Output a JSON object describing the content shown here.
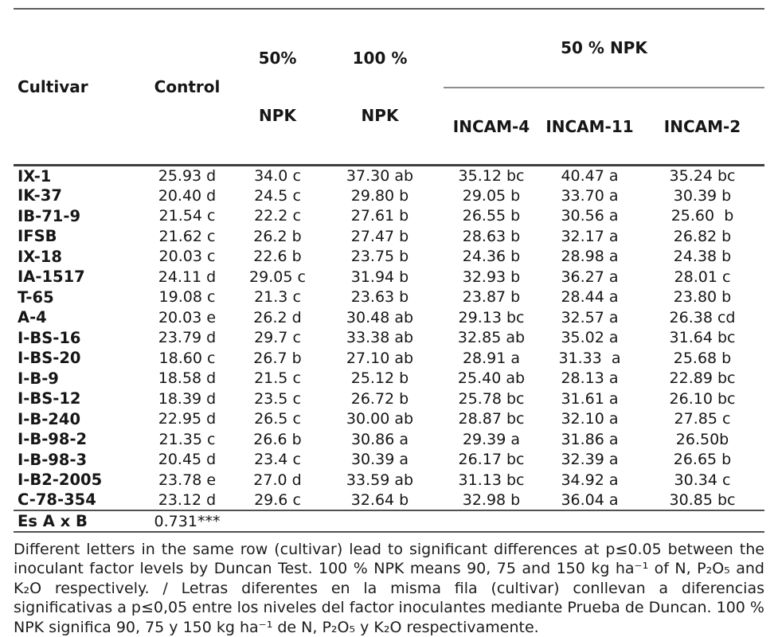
{
  "colors": {
    "text": "#161616",
    "rule": "#4f4f4f"
  },
  "table": {
    "header": {
      "col_cultivar": "Cultivar",
      "col_control": "Control",
      "col_npk50_line1": "50%",
      "col_npk50_line2": "NPK",
      "col_npk100_line1": "100 %",
      "col_npk100_line2": "NPK",
      "group_npk50": "50 % NPK",
      "subcols": [
        "INCAM-4",
        "INCAM-11",
        "INCAM-2"
      ]
    },
    "rows": [
      [
        "IX-1",
        "25.93 d",
        "34.0 c",
        "37.30 ab",
        "35.12 bc",
        "40.47 a",
        "35.24 bc"
      ],
      [
        "IK-37",
        "20.40 d",
        "24.5 c",
        "29.80 b",
        "29.05 b",
        "33.70 a",
        "30.39 b"
      ],
      [
        "IB-71-9",
        "21.54 c",
        "22.2 c",
        "27.61 b",
        "26.55 b",
        "30.56 a",
        "25.60  b"
      ],
      [
        "IFSB",
        "21.62 c",
        "26.2 b",
        "27.47 b",
        "28.63 b",
        "32.17 a",
        "26.82 b"
      ],
      [
        "IX-18",
        "20.03 c",
        "22.6 b",
        "23.75 b",
        "24.36 b",
        "28.98 a",
        "24.38 b"
      ],
      [
        "IA-1517",
        "24.11 d",
        "29.05 c",
        "31.94 b",
        "32.93 b",
        "36.27 a",
        "28.01 c"
      ],
      [
        "T-65",
        "19.08 c",
        "21.3 c",
        "23.63 b",
        "23.87 b",
        "28.44 a",
        "23.80 b"
      ],
      [
        "A-4",
        "20.03 e",
        "26.2 d",
        "30.48 ab",
        "29.13 bc",
        "32.57 a",
        "26.38 cd"
      ],
      [
        "I-BS-16",
        "23.79 d",
        "29.7 c",
        "33.38 ab",
        "32.85 ab",
        "35.02 a",
        "31.64 bc"
      ],
      [
        "I-BS-20",
        "18.60 c",
        "26.7 b",
        "27.10 ab",
        "28.91 a",
        "31.33  a",
        "25.68 b"
      ],
      [
        "I-B-9",
        "18.58 d",
        "21.5 c",
        "25.12 b",
        "25.40 ab",
        "28.13 a",
        "22.89 bc"
      ],
      [
        "I-BS-12",
        "18.39 d",
        "23.5 c",
        "26.72 b",
        "25.78 bc",
        "31.61 a",
        "26.10 bc"
      ],
      [
        "I-B-240",
        "22.95 d",
        "26.5 c",
        "30.00 ab",
        "28.87 bc",
        "32.10 a",
        "27.85 c"
      ],
      [
        "I-B-98-2",
        "21.35 c",
        "26.6 b",
        "30.86 a",
        "29.39 a",
        "31.86 a",
        "26.50b"
      ],
      [
        "I-B-98-3",
        "20.45 d",
        "23.4 c",
        "30.39 a",
        "26.17 bc",
        "32.39 a",
        "26.65 b"
      ],
      [
        "I-B2-2005",
        "23.78 e",
        "27.0 d",
        "33.59 ab",
        "31.13 bc",
        "34.92 a",
        "30.34 c"
      ],
      [
        "C-78-354",
        "23.12 d",
        "29.6 c",
        "32.64 b",
        "32.98 b",
        "36.04 a",
        "30.85 bc"
      ]
    ],
    "footer_row": {
      "label": "Es A x B",
      "value": "0.731***"
    }
  },
  "footnote": {
    "text": "Different letters in the same row (cultivar) lead to significant differences at p≤0.05 between the inoculant factor levels by Duncan Test. 100 % NPK means 90, 75 and 150 kg ha⁻¹ of N, P₂O₅ and K₂O respectively. / Letras diferentes en la misma fila (cultivar) conllevan a diferencias significativas a p≤0,05 entre los niveles del factor inoculantes mediante Prueba de Duncan. 100 % NPK significa 90, 75 y 150 kg ha⁻¹ de N, P₂O₅ y K₂O respectivamente."
  }
}
